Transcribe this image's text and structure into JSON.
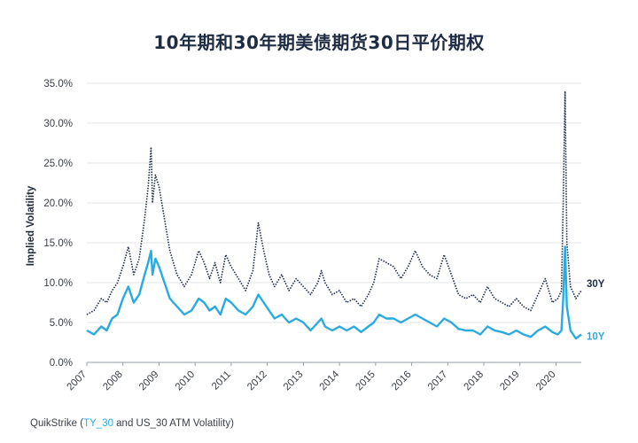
{
  "title": "10年期和30年期美债期货30日平价期权",
  "source": {
    "prefix": "QuikStrike (",
    "link": "TY_30",
    "suffix": " and US_30 ATM Volatility)"
  },
  "colors": {
    "series_10y": "#29aae1",
    "series_30y": "#1c2b4a",
    "grid": "#e3e6ea",
    "axis": "#9aa1a9"
  },
  "chart_data": {
    "type": "line",
    "title": "10年期和30年期美债期货30日平价期权",
    "ylabel": "Implied Volatility",
    "xlabel": "",
    "ylim": [
      0,
      35
    ],
    "y_ticks": [
      "0.0%",
      "5.0%",
      "10.0%",
      "15.0%",
      "20.0%",
      "25.0%",
      "30.0%",
      "35.0%"
    ],
    "x_ticks": [
      "2007",
      "2008",
      "2009",
      "2010",
      "2011",
      "2012",
      "2013",
      "2014",
      "2015",
      "2016",
      "2017",
      "2018",
      "2019",
      "2020"
    ],
    "xlim": [
      2007.0,
      2020.7
    ],
    "grid": true,
    "series": [
      {
        "name": "30Y",
        "style": "dotted",
        "x": [
          2007.0,
          2007.2,
          2007.4,
          2007.55,
          2007.7,
          2007.85,
          2008.0,
          2008.15,
          2008.3,
          2008.45,
          2008.6,
          2008.7,
          2008.78,
          2008.82,
          2008.9,
          2009.0,
          2009.15,
          2009.3,
          2009.5,
          2009.7,
          2009.9,
          2010.1,
          2010.25,
          2010.4,
          2010.55,
          2010.7,
          2010.85,
          2011.0,
          2011.2,
          2011.4,
          2011.6,
          2011.75,
          2011.9,
          2012.05,
          2012.2,
          2012.4,
          2012.6,
          2012.8,
          2013.0,
          2013.2,
          2013.4,
          2013.5,
          2013.6,
          2013.8,
          2014.0,
          2014.2,
          2014.4,
          2014.6,
          2014.8,
          2014.95,
          2015.1,
          2015.3,
          2015.5,
          2015.7,
          2015.9,
          2016.1,
          2016.3,
          2016.5,
          2016.7,
          2016.9,
          2017.1,
          2017.3,
          2017.5,
          2017.7,
          2017.9,
          2018.1,
          2018.3,
          2018.5,
          2018.7,
          2018.9,
          2019.1,
          2019.3,
          2019.5,
          2019.7,
          2019.9,
          2020.05,
          2020.15,
          2020.2,
          2020.25,
          2020.3,
          2020.4,
          2020.55,
          2020.7
        ],
        "y": [
          6.0,
          6.5,
          8.0,
          7.5,
          9.0,
          10.0,
          12.0,
          14.5,
          11.0,
          13.0,
          18.0,
          22.0,
          27.0,
          20.0,
          23.5,
          22.0,
          18.0,
          14.0,
          11.0,
          9.5,
          11.0,
          14.0,
          12.5,
          10.5,
          12.5,
          10.0,
          13.5,
          12.0,
          10.5,
          9.0,
          11.5,
          17.5,
          14.0,
          11.0,
          9.5,
          11.0,
          9.0,
          10.5,
          9.5,
          8.5,
          10.0,
          11.5,
          10.0,
          8.5,
          9.0,
          7.5,
          8.0,
          7.0,
          8.5,
          10.0,
          13.0,
          12.5,
          12.0,
          10.5,
          12.0,
          14.0,
          12.0,
          11.0,
          10.5,
          13.5,
          11.0,
          8.5,
          8.0,
          8.5,
          7.5,
          9.5,
          8.0,
          7.5,
          7.0,
          8.0,
          7.0,
          6.5,
          8.5,
          10.5,
          7.5,
          8.0,
          9.0,
          20.0,
          34.0,
          15.0,
          9.5,
          8.0,
          9.0
        ]
      },
      {
        "name": "10Y",
        "style": "solid",
        "x": [
          2007.0,
          2007.2,
          2007.4,
          2007.55,
          2007.7,
          2007.85,
          2008.0,
          2008.15,
          2008.3,
          2008.45,
          2008.6,
          2008.7,
          2008.78,
          2008.82,
          2008.9,
          2009.0,
          2009.15,
          2009.3,
          2009.5,
          2009.7,
          2009.9,
          2010.1,
          2010.25,
          2010.4,
          2010.55,
          2010.7,
          2010.85,
          2011.0,
          2011.2,
          2011.4,
          2011.6,
          2011.75,
          2011.9,
          2012.05,
          2012.2,
          2012.4,
          2012.6,
          2012.8,
          2013.0,
          2013.2,
          2013.4,
          2013.5,
          2013.6,
          2013.8,
          2014.0,
          2014.2,
          2014.4,
          2014.6,
          2014.8,
          2014.95,
          2015.1,
          2015.3,
          2015.5,
          2015.7,
          2015.9,
          2016.1,
          2016.3,
          2016.5,
          2016.7,
          2016.9,
          2017.1,
          2017.3,
          2017.5,
          2017.7,
          2017.9,
          2018.1,
          2018.3,
          2018.5,
          2018.7,
          2018.9,
          2019.1,
          2019.3,
          2019.5,
          2019.7,
          2019.9,
          2020.05,
          2020.15,
          2020.2,
          2020.25,
          2020.3,
          2020.4,
          2020.55,
          2020.7
        ],
        "y": [
          4.0,
          3.5,
          4.5,
          4.0,
          5.5,
          6.0,
          8.0,
          9.5,
          7.5,
          8.5,
          11.0,
          12.5,
          14.0,
          11.0,
          13.0,
          12.0,
          10.0,
          8.0,
          7.0,
          6.0,
          6.5,
          8.0,
          7.5,
          6.5,
          7.0,
          6.0,
          8.0,
          7.5,
          6.5,
          6.0,
          7.0,
          8.5,
          7.5,
          6.5,
          5.5,
          6.0,
          5.0,
          5.5,
          5.0,
          4.0,
          5.0,
          5.5,
          4.5,
          4.0,
          4.5,
          4.0,
          4.5,
          3.8,
          4.5,
          5.0,
          6.0,
          5.5,
          5.5,
          5.0,
          5.5,
          6.0,
          5.5,
          5.0,
          4.5,
          5.5,
          5.0,
          4.2,
          4.0,
          4.0,
          3.5,
          4.5,
          4.0,
          3.8,
          3.5,
          4.0,
          3.5,
          3.2,
          4.0,
          4.5,
          3.8,
          3.5,
          4.0,
          8.0,
          14.5,
          7.0,
          4.0,
          3.0,
          3.5
        ]
      }
    ]
  }
}
